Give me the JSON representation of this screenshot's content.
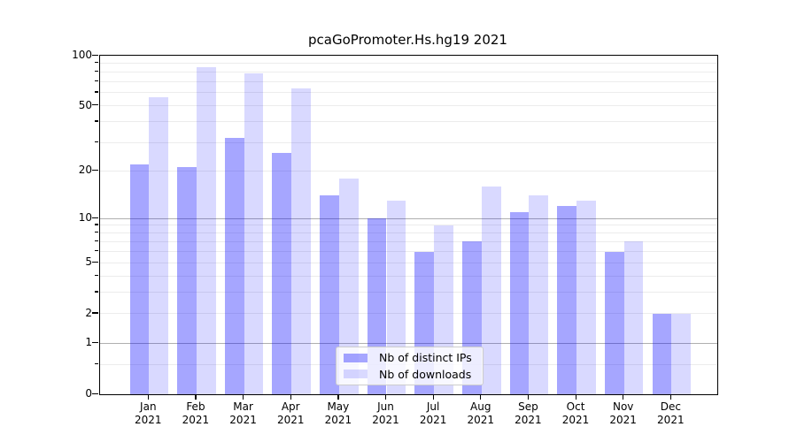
{
  "chart_data": {
    "type": "bar",
    "title": "pcaGoPromoter.Hs.hg19 2021",
    "year": "2021",
    "months": [
      "Jan",
      "Feb",
      "Mar",
      "Apr",
      "May",
      "Jun",
      "Jul",
      "Aug",
      "Sep",
      "Oct",
      "Nov",
      "Dec"
    ],
    "series": [
      {
        "name": "Nb of distinct IPs",
        "color": "rgba(0,0,255,0.35)",
        "color_hex_on_white": "#A6A6FF",
        "values": [
          22,
          21,
          32,
          26,
          14,
          10,
          6,
          7,
          11,
          12,
          6,
          2
        ]
      },
      {
        "name": "Nb of downloads",
        "color": "rgba(0,0,255,0.15)",
        "color_hex_on_white": "#D9D9FF",
        "values": [
          56,
          85,
          78,
          64,
          18,
          13,
          9,
          16,
          14,
          13,
          7,
          2
        ]
      }
    ],
    "y_axis": {
      "scale": "log1p",
      "ylim": [
        0,
        100
      ],
      "labeled_ticks": [
        0,
        1,
        2,
        5,
        10,
        20,
        50,
        100
      ],
      "major_grid_ticks": [
        1,
        10
      ],
      "minor_grid_ticks": [
        0.5,
        2,
        3,
        4,
        5,
        6,
        7,
        8,
        9,
        20,
        30,
        40,
        50,
        60,
        70,
        80,
        90
      ]
    },
    "grid": true,
    "legend_position": "bottom-center",
    "background_color": "#ffffff",
    "axis_color": "#000000"
  }
}
